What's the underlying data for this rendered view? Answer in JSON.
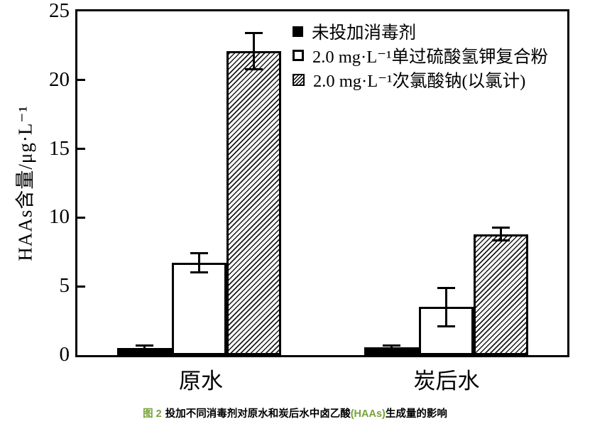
{
  "chart_data": {
    "type": "bar",
    "categories": [
      "原水",
      "炭后水"
    ],
    "series": [
      {
        "name": "未投加消毒剂",
        "marker_style": "solid-black",
        "values": [
          0.5,
          0.55
        ],
        "errors": [
          0.2,
          0.15
        ]
      },
      {
        "name": "2.0 mg·L⁻¹单过硫酸氢钾复合粉",
        "marker_style": "white",
        "values": [
          6.7,
          3.5
        ],
        "errors": [
          0.7,
          1.4
        ]
      },
      {
        "name": "2.0 mg·L⁻¹次氯酸钠(以氯计)",
        "marker_style": "hatched",
        "values": [
          22.1,
          8.8
        ],
        "errors": [
          1.3,
          0.45
        ]
      }
    ],
    "ylabel": "HAAs含量/μg·L⁻¹",
    "xlabel": "",
    "ylim": [
      0,
      25
    ],
    "yticks": [
      0,
      5,
      10,
      15,
      20,
      25
    ],
    "grid": false,
    "legend_position": "upper-right-inside",
    "bar_color": "#000000",
    "background_color": "#ffffff"
  },
  "caption": {
    "figure_label": "图 2",
    "segment_main": "投加不同消毒剂对原水和炭后水中卤乙酸",
    "segment_highlight": "(HAAs)",
    "segment_tail": "生成量的影响",
    "accent_color": "#76a33c"
  }
}
